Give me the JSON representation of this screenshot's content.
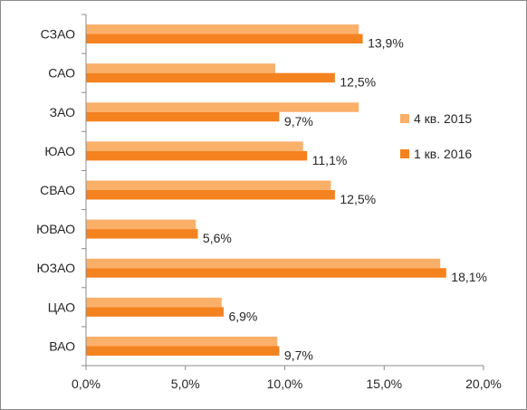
{
  "chart_data": {
    "type": "bar",
    "orientation": "horizontal",
    "categories": [
      "СЗАО",
      "САО",
      "ЗАО",
      "ЮАО",
      "СВАО",
      "ЮВАО",
      "ЮЗАО",
      "ЦАО",
      "ВАО"
    ],
    "series": [
      {
        "name": "4 кв. 2015",
        "values": [
          13.7,
          9.5,
          13.7,
          10.9,
          12.3,
          5.5,
          17.8,
          6.8,
          9.6
        ],
        "color": "#fbb06a"
      },
      {
        "name": "1 кв. 2016",
        "values": [
          13.9,
          12.5,
          9.7,
          11.1,
          12.5,
          5.6,
          18.1,
          6.9,
          9.7
        ],
        "color": "#f4821f"
      }
    ],
    "data_labels": [
      "13,9%",
      "12,5%",
      "9,7%",
      "11,1%",
      "12,5%",
      "5,6%",
      "18,1%",
      "6,9%",
      "9,7%"
    ],
    "x_ticks": [
      "0,0%",
      "5,0%",
      "10,0%",
      "15,0%",
      "20,0%"
    ],
    "xlim": [
      0,
      20
    ],
    "grid": false,
    "legend_position": "right"
  }
}
